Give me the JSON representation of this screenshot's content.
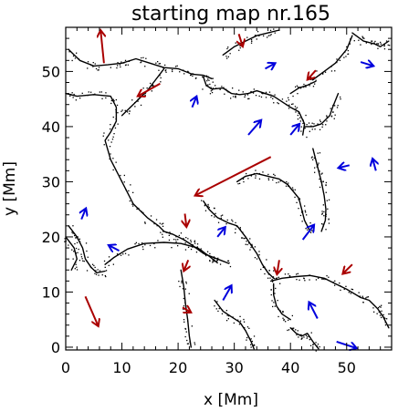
{
  "chart_data": {
    "type": "scatter",
    "title": "starting map nr.165",
    "xlabel": "x [Mm]",
    "ylabel": "y [Mm]",
    "xlim": [
      0,
      58
    ],
    "ylim": [
      -0.5,
      58
    ],
    "xticks": [
      0,
      10,
      20,
      30,
      40,
      50
    ],
    "yticks": [
      0,
      10,
      20,
      30,
      40,
      50
    ],
    "grid": false,
    "colors": {
      "lanes": "#000000",
      "arrow_red": "#aa0000",
      "arrow_blue": "#0000dd"
    },
    "lanes": [
      [
        [
          0,
          46
        ],
        [
          2,
          45.5
        ],
        [
          5,
          45.8
        ],
        [
          8,
          45.5
        ],
        [
          9,
          43.5
        ],
        [
          9,
          41
        ],
        [
          8,
          39
        ],
        [
          7,
          37.5
        ],
        [
          8,
          34
        ],
        [
          10,
          30
        ],
        [
          12,
          26
        ],
        [
          14.5,
          23.5
        ],
        [
          16.5,
          22
        ],
        [
          17.5,
          21
        ],
        [
          19,
          20.5
        ],
        [
          21,
          19.5
        ],
        [
          22.5,
          18.5
        ],
        [
          24.5,
          17
        ],
        [
          27,
          16
        ],
        [
          29,
          15.2
        ]
      ],
      [
        [
          0.5,
          54
        ],
        [
          2.5,
          52
        ],
        [
          5,
          51
        ],
        [
          7.5,
          51.2
        ],
        [
          10,
          51.5
        ],
        [
          12.5,
          52.3
        ],
        [
          15,
          51.5
        ],
        [
          17.5,
          50.7
        ],
        [
          20,
          50.5
        ],
        [
          22.5,
          49.5
        ],
        [
          24.5,
          49.3
        ],
        [
          26,
          48.7
        ]
      ],
      [
        [
          24.5,
          49
        ],
        [
          25,
          47.5
        ],
        [
          26,
          46.8
        ],
        [
          28,
          47
        ],
        [
          29.5,
          46
        ],
        [
          31,
          45.8
        ],
        [
          32.5,
          46
        ],
        [
          34,
          46.5
        ],
        [
          35.5,
          46
        ],
        [
          37,
          45.5
        ],
        [
          38.5,
          44.5
        ],
        [
          40,
          43.5
        ],
        [
          41.5,
          42.7
        ],
        [
          42.5,
          40.5
        ],
        [
          42.2,
          38.5
        ]
      ],
      [
        [
          44,
          48.5
        ],
        [
          46,
          50
        ],
        [
          48,
          51.5
        ],
        [
          50,
          54
        ],
        [
          51,
          56.5
        ]
      ],
      [
        [
          40,
          46
        ],
        [
          41.5,
          47
        ],
        [
          43,
          47.5
        ],
        [
          44.5,
          48.2
        ]
      ],
      [
        [
          0.5,
          22
        ],
        [
          2,
          20
        ],
        [
          3,
          18
        ],
        [
          3.5,
          16
        ],
        [
          4.5,
          14.5
        ],
        [
          5.5,
          13.5
        ],
        [
          7,
          13.8
        ]
      ],
      [
        [
          7,
          15
        ],
        [
          8.5,
          16.2
        ],
        [
          11,
          17.8
        ],
        [
          14,
          18.8
        ],
        [
          17.5,
          19
        ],
        [
          20.5,
          18.8
        ],
        [
          23.5,
          18
        ],
        [
          25.5,
          16.5
        ],
        [
          27,
          15.3
        ]
      ],
      [
        [
          30.5,
          30
        ],
        [
          32,
          31
        ],
        [
          34,
          31.5
        ],
        [
          36,
          31
        ],
        [
          38,
          30.5
        ],
        [
          39.5,
          29.5
        ],
        [
          41.5,
          27
        ],
        [
          42,
          25
        ],
        [
          42.5,
          23
        ],
        [
          43.5,
          21
        ]
      ],
      [
        [
          24.5,
          26.5
        ],
        [
          25.5,
          25
        ],
        [
          27,
          23.5
        ],
        [
          29,
          22.5
        ],
        [
          30.5,
          22
        ],
        [
          32,
          20
        ],
        [
          33,
          18.5
        ],
        [
          34,
          17
        ],
        [
          35,
          15
        ],
        [
          36,
          13.5
        ],
        [
          37,
          12.5
        ]
      ],
      [
        [
          36.5,
          12
        ],
        [
          38.5,
          12.5
        ],
        [
          41,
          12.8
        ],
        [
          43.5,
          13
        ],
        [
          46,
          12.5
        ],
        [
          48,
          11.5
        ],
        [
          50,
          10.5
        ],
        [
          52.5,
          9
        ],
        [
          54,
          8.5
        ],
        [
          55.5,
          7
        ],
        [
          56.5,
          5.5
        ],
        [
          57.5,
          3.5
        ]
      ],
      [
        [
          44,
          36
        ],
        [
          44.5,
          34
        ],
        [
          45,
          32
        ],
        [
          45.5,
          30
        ],
        [
          46,
          27.5
        ],
        [
          46.3,
          25
        ],
        [
          46.2,
          23
        ],
        [
          45.5,
          21
        ]
      ],
      [
        [
          42.5,
          40
        ],
        [
          44,
          40
        ],
        [
          45.5,
          40.5
        ],
        [
          47,
          42
        ],
        [
          47.5,
          43.5
        ],
        [
          48.5,
          46
        ]
      ],
      [
        [
          20.5,
          14
        ],
        [
          21,
          11
        ],
        [
          21.3,
          8
        ],
        [
          21.7,
          5
        ],
        [
          22,
          2
        ],
        [
          22.3,
          0
        ]
      ],
      [
        [
          26.5,
          8.5
        ],
        [
          28,
          6.5
        ],
        [
          29.5,
          5.5
        ],
        [
          31,
          4.5
        ],
        [
          32,
          3
        ],
        [
          33,
          1
        ],
        [
          33.5,
          -0.3
        ]
      ],
      [
        [
          40,
          5
        ],
        [
          38.5,
          6
        ],
        [
          37.5,
          7.5
        ],
        [
          37,
          9.5
        ],
        [
          37,
          11.5
        ]
      ],
      [
        [
          40,
          3.5
        ],
        [
          41,
          2.5
        ],
        [
          42,
          2
        ],
        [
          43,
          2.5
        ],
        [
          44,
          1
        ],
        [
          45,
          -0.3
        ]
      ],
      [
        [
          17.5,
          50.5
        ],
        [
          16,
          48.5
        ],
        [
          14.5,
          46.5
        ],
        [
          13,
          45
        ],
        [
          11.5,
          43.5
        ],
        [
          10,
          42
        ]
      ],
      [
        [
          51,
          57
        ],
        [
          53,
          55.5
        ],
        [
          55,
          55
        ],
        [
          56,
          54.5
        ],
        [
          57.5,
          55.5
        ]
      ],
      [
        [
          28,
          53
        ],
        [
          30,
          54.5
        ],
        [
          32,
          55.5
        ],
        [
          34,
          56.5
        ],
        [
          36,
          57
        ],
        [
          38,
          57.5
        ]
      ],
      [
        [
          0,
          20
        ],
        [
          1.5,
          18
        ],
        [
          2,
          16
        ],
        [
          1,
          14
        ]
      ]
    ],
    "series": [
      {
        "color": "red",
        "arrows": [
          [
            [
              6.8,
              51.5
            ],
            [
              6.2,
              57.5
            ]
          ],
          [
            [
              16.8,
              47.8
            ],
            [
              12.8,
              45.5
            ]
          ],
          [
            [
              30.8,
              56.8
            ],
            [
              31.5,
              54.5
            ]
          ],
          [
            [
              44.5,
              50.2
            ],
            [
              43.0,
              48.5
            ]
          ],
          [
            [
              36.5,
              34.5
            ],
            [
              23.0,
              27.5
            ]
          ],
          [
            [
              21.2,
              24.2
            ],
            [
              21.5,
              21.8
            ]
          ],
          [
            [
              3.5,
              9.2
            ],
            [
              5.8,
              3.8
            ]
          ],
          [
            [
              21.8,
              15.8
            ],
            [
              21.0,
              13.8
            ]
          ],
          [
            [
              20.8,
              7.2
            ],
            [
              22.3,
              6.3
            ]
          ],
          [
            [
              38.0,
              15.8
            ],
            [
              37.6,
              13.2
            ]
          ],
          [
            [
              51.0,
              15.0
            ],
            [
              49.3,
              13.3
            ]
          ]
        ]
      },
      {
        "color": "blue",
        "arrows": [
          [
            [
              22.5,
              43.5
            ],
            [
              23.3,
              45.5
            ]
          ],
          [
            [
              35.5,
              50.5
            ],
            [
              37.3,
              51.5
            ]
          ],
          [
            [
              52.5,
              51.7
            ],
            [
              54.8,
              51.0
            ]
          ],
          [
            [
              32.5,
              38.5
            ],
            [
              34.8,
              41.2
            ]
          ],
          [
            [
              40.0,
              38.5
            ],
            [
              41.6,
              40.5
            ]
          ],
          [
            [
              55.2,
              32.0
            ],
            [
              54.6,
              34.2
            ]
          ],
          [
            [
              50.5,
              33.0
            ],
            [
              48.5,
              32.5
            ]
          ],
          [
            [
              2.8,
              23.2
            ],
            [
              3.6,
              25.2
            ]
          ],
          [
            [
              9.5,
              17.5
            ],
            [
              7.6,
              18.5
            ]
          ],
          [
            [
              27.0,
              20.0
            ],
            [
              28.4,
              21.8
            ]
          ],
          [
            [
              42.2,
              19.5
            ],
            [
              44.2,
              22.2
            ]
          ],
          [
            [
              28.0,
              8.5
            ],
            [
              29.5,
              11.2
            ]
          ],
          [
            [
              44.8,
              5.2
            ],
            [
              43.3,
              8.2
            ]
          ],
          [
            [
              48.2,
              1.0
            ],
            [
              51.8,
              -0.2
            ]
          ]
        ]
      }
    ]
  }
}
